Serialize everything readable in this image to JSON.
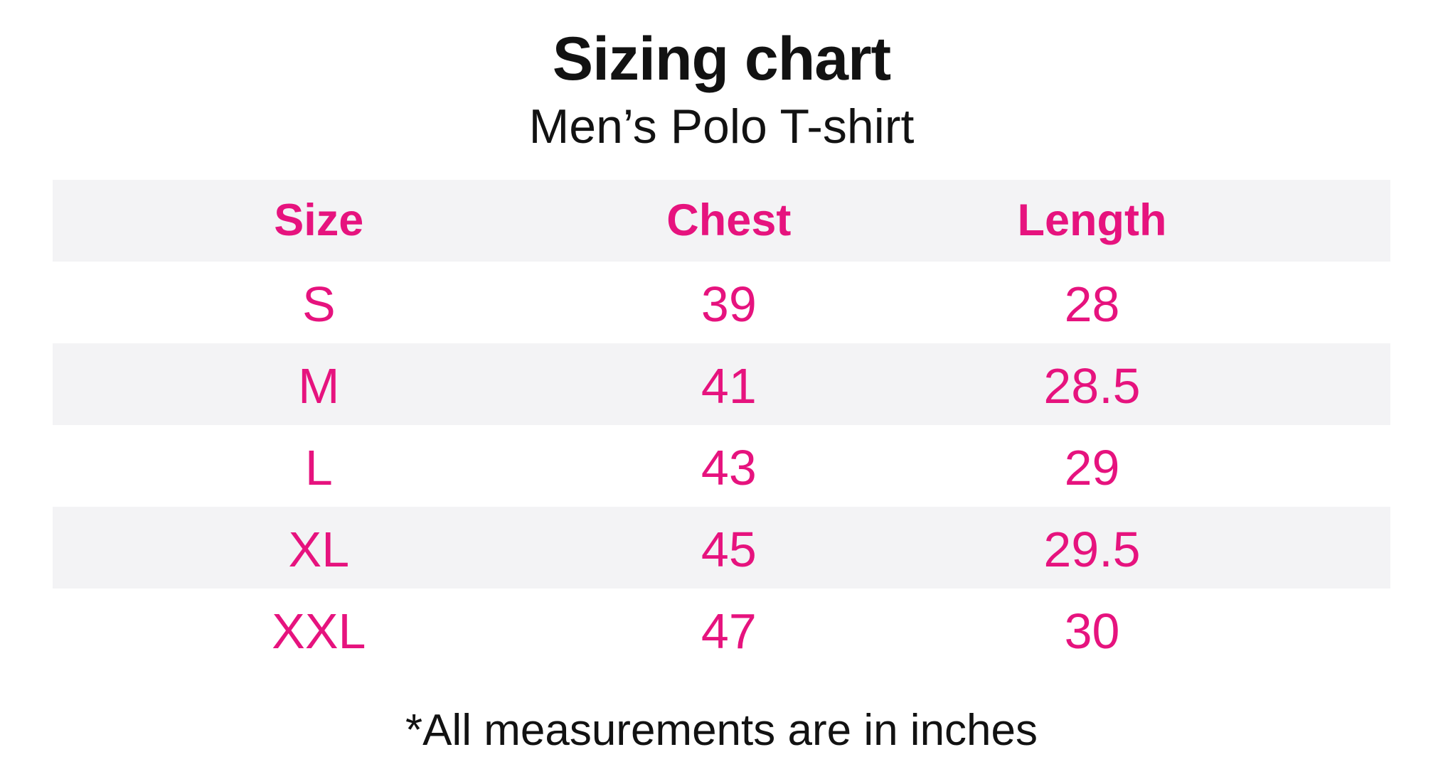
{
  "title": "Sizing chart",
  "subtitle": "Men’s Polo T-shirt",
  "table": {
    "headers": {
      "size": "Size",
      "chest": "Chest",
      "length": "Length"
    },
    "rows": [
      {
        "size": "S",
        "chest": "39",
        "length": "28"
      },
      {
        "size": "M",
        "chest": "41",
        "length": "28.5"
      },
      {
        "size": "L",
        "chest": "43",
        "length": "29"
      },
      {
        "size": "XL",
        "chest": "45",
        "length": "29.5"
      },
      {
        "size": "XXL",
        "chest": "47",
        "length": "30"
      }
    ]
  },
  "footnote": "*All measurements are in inches",
  "colors": {
    "accent_pink": "#E6137E",
    "stripe_gray": "#F3F3F5",
    "text_black": "#121212",
    "background": "#FFFFFF"
  },
  "chart_data": {
    "type": "table",
    "title": "Sizing chart",
    "subtitle": "Men’s Polo T-shirt",
    "columns": [
      "Size",
      "Chest",
      "Length"
    ],
    "rows": [
      [
        "S",
        39,
        28
      ],
      [
        "M",
        41,
        28.5
      ],
      [
        "L",
        43,
        29
      ],
      [
        "XL",
        45,
        29.5
      ],
      [
        "XXL",
        47,
        30
      ]
    ],
    "units": "inches",
    "footnote": "*All measurements are in inches",
    "layout": {
      "stripe_pattern": "header and alternate rows shaded light gray",
      "text_color": "#E6137E"
    }
  }
}
